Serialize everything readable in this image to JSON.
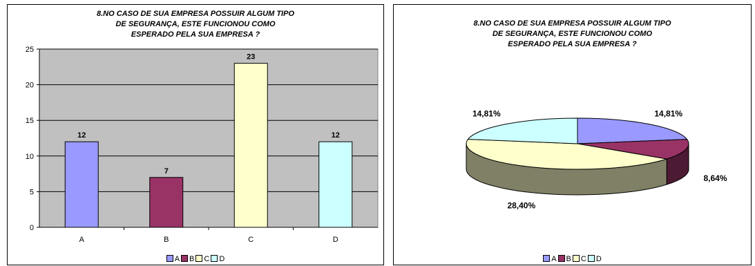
{
  "chart_data": [
    {
      "type": "bar",
      "title": "8.NO CASO DE SUA EMPRESA POSSUIR ALGUM TIPO DE SEGURANÇA, ESTE FUNCIONOU COMO ESPERADO PELA SUA EMPRESA ?",
      "title_lines": [
        "8.NO CASO DE SUA EMPRESA POSSUIR ALGUM TIPO",
        "DE SEGURANÇA, ESTE FUNCIONOU COMO",
        "ESPERADO PELA SUA EMPRESA ?"
      ],
      "categories": [
        "A",
        "B",
        "C",
        "D"
      ],
      "values": [
        12,
        7,
        23,
        12
      ],
      "data_labels": [
        "12",
        "7",
        "23",
        "12"
      ],
      "colors": [
        "#9999ff",
        "#993366",
        "#ffffcc",
        "#ccffff"
      ],
      "ylim": [
        0,
        25
      ],
      "yticks": [
        0,
        5,
        10,
        15,
        20,
        25
      ],
      "grid": true,
      "plot_background": "#c0c0c0",
      "legend": [
        "A",
        "B",
        "C",
        "D"
      ],
      "legend_position": "bottom"
    },
    {
      "type": "pie",
      "title": "8.NO CASO DE SUA EMPRESA POSSUIR ALGUM TIPO DE SEGURANÇA, ESTE FUNCIONOU COMO ESPERADO PELA SUA EMPRESA ?",
      "title_lines": [
        "8.NO CASO DE SUA EMPRESA POSSUIR ALGUM TIPO",
        "DE SEGURANÇA, ESTE FUNCIONOU COMO",
        "ESPERADO PELA SUA EMPRESA ?"
      ],
      "categories": [
        "A",
        "B",
        "C",
        "D"
      ],
      "values": [
        14.81,
        8.64,
        28.4,
        14.81
      ],
      "data_labels": [
        "14,81%",
        "8,64%",
        "28,40%",
        "14,81%"
      ],
      "colors": [
        "#9999ff",
        "#993366",
        "#ffffcc",
        "#ccffff"
      ],
      "three_d": true,
      "legend": [
        "A",
        "B",
        "C",
        "D"
      ],
      "legend_position": "bottom"
    }
  ]
}
